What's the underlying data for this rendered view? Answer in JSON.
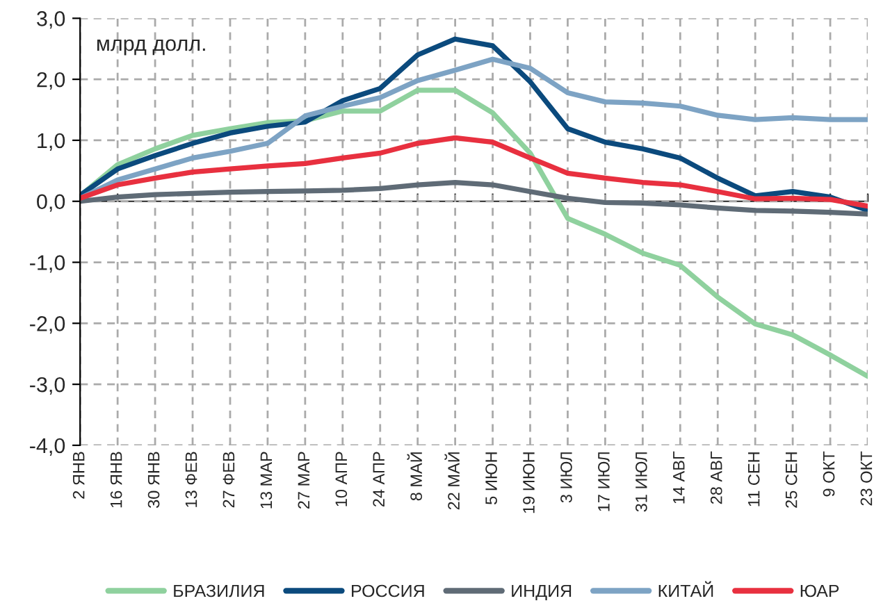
{
  "chart_data": {
    "type": "line",
    "categories": [
      "2 ЯНВ",
      "16 ЯНВ",
      "30 ЯНВ",
      "13 ФЕВ",
      "27 ФЕВ",
      "13 МАР",
      "27 МАР",
      "10 АПР",
      "24 АПР",
      "8 МАЙ",
      "22 МАЙ",
      "5 ИЮН",
      "19 ИЮН",
      "3 ИЮЛ",
      "17 ИЮЛ",
      "31 ИЮЛ",
      "14 АВГ",
      "28 АВГ",
      "11 СЕН",
      "25 СЕН",
      "9 ОКТ",
      "23 ОКТ"
    ],
    "series": [
      {
        "name": "БРАЗИЛИЯ",
        "color": "#8fd19e",
        "values": [
          0.09,
          0.6,
          0.86,
          1.08,
          1.19,
          1.29,
          1.32,
          1.48,
          1.48,
          1.82,
          1.82,
          1.45,
          0.79,
          -0.28,
          -0.54,
          -0.85,
          -1.05,
          -1.57,
          -2.01,
          -2.19,
          -2.52,
          -2.87
        ]
      },
      {
        "name": "РОССИЯ",
        "color": "#0b4a7d",
        "values": [
          0.1,
          0.53,
          0.75,
          0.95,
          1.12,
          1.23,
          1.3,
          1.65,
          1.85,
          2.4,
          2.66,
          2.55,
          1.96,
          1.19,
          0.97,
          0.86,
          0.71,
          0.38,
          0.09,
          0.16,
          0.07,
          -0.15
        ]
      },
      {
        "name": "ИНДИЯ",
        "color": "#5f6b76",
        "values": [
          0.0,
          0.07,
          0.11,
          0.13,
          0.15,
          0.16,
          0.17,
          0.18,
          0.21,
          0.27,
          0.31,
          0.27,
          0.16,
          0.05,
          -0.02,
          -0.03,
          -0.06,
          -0.11,
          -0.15,
          -0.16,
          -0.18,
          -0.21
        ]
      },
      {
        "name": "КИТАЙ",
        "color": "#7da3c4",
        "values": [
          0.05,
          0.35,
          0.53,
          0.71,
          0.82,
          0.95,
          1.4,
          1.56,
          1.7,
          1.98,
          2.15,
          2.33,
          2.18,
          1.78,
          1.63,
          1.61,
          1.56,
          1.41,
          1.34,
          1.37,
          1.34,
          1.34
        ]
      },
      {
        "name": "ЮАР",
        "color": "#e8303f",
        "values": [
          0.05,
          0.27,
          0.38,
          0.48,
          0.53,
          0.58,
          0.62,
          0.71,
          0.79,
          0.95,
          1.04,
          0.97,
          0.71,
          0.46,
          0.38,
          0.31,
          0.27,
          0.16,
          0.04,
          0.05,
          0.03,
          -0.08
        ]
      }
    ],
    "ylim": [
      -4,
      3
    ],
    "yticks": [
      {
        "value": -4,
        "label": "-4,0"
      },
      {
        "value": -3,
        "label": "-3,0"
      },
      {
        "value": -2,
        "label": "-2,0"
      },
      {
        "value": -1,
        "label": "-1,0"
      },
      {
        "value": 0,
        "label": "0,0"
      },
      {
        "value": 1,
        "label": "1,0"
      },
      {
        "value": 2,
        "label": "2,0"
      },
      {
        "value": 3,
        "label": "3,0"
      }
    ],
    "annotations": [
      "млрд долл."
    ],
    "grid": true,
    "legend": "bottom",
    "line_style": "solid",
    "marker": "none"
  }
}
